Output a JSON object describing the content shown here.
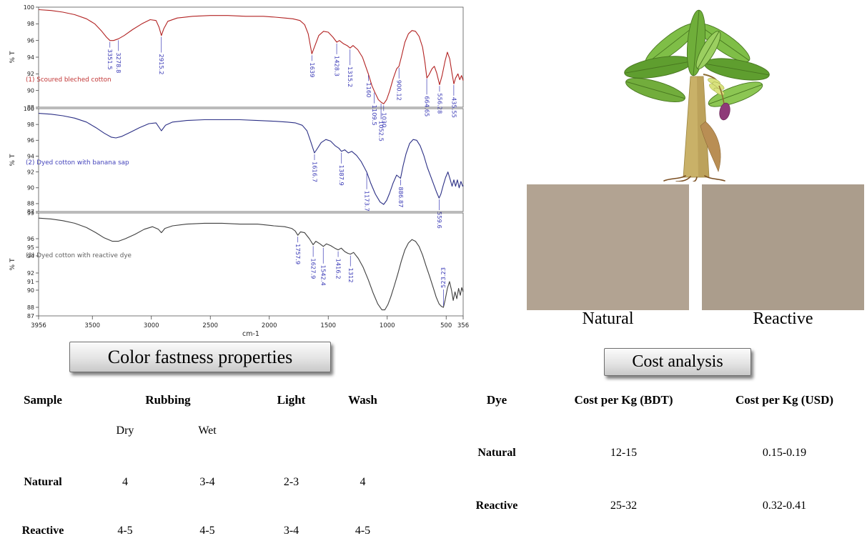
{
  "chart_data": {
    "type": "line",
    "xlabel": "cm-1",
    "ylabel": "% T",
    "x_range": [
      3956,
      356
    ],
    "x_ticks": [
      3956,
      3500,
      3000,
      2500,
      2000,
      1500,
      1000,
      500,
      356
    ],
    "peak_color": "#3a3ab6",
    "panels": [
      {
        "label": "(1) Scoured bleched cotton",
        "line_color": "#b22222",
        "label_color": "#c23535",
        "y_range": [
          88,
          100
        ],
        "y_ticks": [
          100,
          98,
          96,
          94,
          92,
          90,
          88
        ],
        "peaks": [
          3351.5,
          3278.8,
          2915.2,
          1639,
          1428.3,
          1315.2,
          1160,
          1109.5,
          1052.5,
          1030,
          900.12,
          664.65,
          556.28,
          435.55
        ],
        "points": [
          [
            3956,
            99.7
          ],
          [
            3850,
            99.6
          ],
          [
            3750,
            99.4
          ],
          [
            3650,
            99.1
          ],
          [
            3550,
            98.6
          ],
          [
            3480,
            98.0
          ],
          [
            3420,
            97.1
          ],
          [
            3380,
            96.4
          ],
          [
            3351,
            96.0
          ],
          [
            3320,
            96.0
          ],
          [
            3279,
            96.2
          ],
          [
            3230,
            96.6
          ],
          [
            3160,
            97.3
          ],
          [
            3080,
            98.0
          ],
          [
            3010,
            98.5
          ],
          [
            2960,
            98.4
          ],
          [
            2935,
            97.6
          ],
          [
            2915,
            96.6
          ],
          [
            2895,
            97.4
          ],
          [
            2860,
            98.3
          ],
          [
            2780,
            98.7
          ],
          [
            2650,
            98.9
          ],
          [
            2500,
            99.0
          ],
          [
            2350,
            99.0
          ],
          [
            2200,
            98.9
          ],
          [
            2050,
            98.9
          ],
          [
            1950,
            98.8
          ],
          [
            1870,
            98.7
          ],
          [
            1800,
            98.6
          ],
          [
            1740,
            98.4
          ],
          [
            1700,
            97.9
          ],
          [
            1670,
            96.8
          ],
          [
            1639,
            94.4
          ],
          [
            1615,
            95.3
          ],
          [
            1580,
            96.6
          ],
          [
            1540,
            97.1
          ],
          [
            1500,
            97.0
          ],
          [
            1460,
            96.4
          ],
          [
            1428,
            95.8
          ],
          [
            1405,
            96.0
          ],
          [
            1370,
            95.6
          ],
          [
            1340,
            95.4
          ],
          [
            1315,
            95.1
          ],
          [
            1290,
            95.4
          ],
          [
            1250,
            94.9
          ],
          [
            1210,
            94.0
          ],
          [
            1160,
            92.0
          ],
          [
            1130,
            90.6
          ],
          [
            1109,
            89.9
          ],
          [
            1075,
            88.9
          ],
          [
            1052,
            88.6
          ],
          [
            1030,
            88.4
          ],
          [
            1005,
            88.9
          ],
          [
            980,
            89.9
          ],
          [
            950,
            91.4
          ],
          [
            920,
            92.6
          ],
          [
            900,
            92.9
          ],
          [
            880,
            94.0
          ],
          [
            850,
            95.8
          ],
          [
            820,
            96.8
          ],
          [
            790,
            97.2
          ],
          [
            760,
            97.1
          ],
          [
            730,
            96.5
          ],
          [
            700,
            95.2
          ],
          [
            680,
            93.4
          ],
          [
            664,
            91.5
          ],
          [
            645,
            91.9
          ],
          [
            620,
            92.6
          ],
          [
            600,
            92.9
          ],
          [
            580,
            92.1
          ],
          [
            556,
            90.7
          ],
          [
            535,
            91.8
          ],
          [
            510,
            93.5
          ],
          [
            490,
            94.6
          ],
          [
            470,
            93.8
          ],
          [
            450,
            92.0
          ],
          [
            435,
            90.8
          ],
          [
            420,
            91.5
          ],
          [
            400,
            92.0
          ],
          [
            385,
            91.3
          ],
          [
            370,
            91.8
          ],
          [
            356,
            91.2
          ]
        ]
      },
      {
        "label": "(2) Dyed cotton with banana sap",
        "line_color": "#2b2f85",
        "label_color": "#4343bb",
        "y_range": [
          87,
          100
        ],
        "y_ticks": [
          100,
          98,
          96,
          94,
          92,
          90,
          88,
          87
        ],
        "peaks": [
          1616.7,
          1387.9,
          1173.7,
          886.87,
          559.6
        ],
        "points": [
          [
            3956,
            99.4
          ],
          [
            3850,
            99.3
          ],
          [
            3750,
            99.1
          ],
          [
            3650,
            98.8
          ],
          [
            3550,
            98.3
          ],
          [
            3470,
            97.6
          ],
          [
            3400,
            96.9
          ],
          [
            3340,
            96.4
          ],
          [
            3300,
            96.3
          ],
          [
            3250,
            96.5
          ],
          [
            3180,
            97.0
          ],
          [
            3100,
            97.6
          ],
          [
            3020,
            98.1
          ],
          [
            2960,
            98.2
          ],
          [
            2915,
            97.2
          ],
          [
            2880,
            97.9
          ],
          [
            2820,
            98.3
          ],
          [
            2700,
            98.5
          ],
          [
            2550,
            98.6
          ],
          [
            2400,
            98.6
          ],
          [
            2250,
            98.6
          ],
          [
            2100,
            98.5
          ],
          [
            1950,
            98.4
          ],
          [
            1850,
            98.3
          ],
          [
            1780,
            98.2
          ],
          [
            1720,
            97.9
          ],
          [
            1680,
            97.2
          ],
          [
            1650,
            95.9
          ],
          [
            1617,
            94.4
          ],
          [
            1595,
            94.9
          ],
          [
            1560,
            95.7
          ],
          [
            1520,
            96.1
          ],
          [
            1480,
            95.9
          ],
          [
            1440,
            95.3
          ],
          [
            1410,
            95.0
          ],
          [
            1388,
            94.6
          ],
          [
            1360,
            94.8
          ],
          [
            1330,
            94.4
          ],
          [
            1300,
            94.6
          ],
          [
            1260,
            94.1
          ],
          [
            1220,
            93.3
          ],
          [
            1174,
            92.0
          ],
          [
            1140,
            90.6
          ],
          [
            1100,
            89.2
          ],
          [
            1060,
            88.2
          ],
          [
            1030,
            87.9
          ],
          [
            1005,
            88.4
          ],
          [
            980,
            89.3
          ],
          [
            950,
            90.6
          ],
          [
            920,
            91.6
          ],
          [
            887,
            91.2
          ],
          [
            865,
            92.8
          ],
          [
            840,
            94.3
          ],
          [
            810,
            95.6
          ],
          [
            780,
            96.1
          ],
          [
            750,
            96.0
          ],
          [
            720,
            95.3
          ],
          [
            690,
            94.1
          ],
          [
            660,
            92.6
          ],
          [
            630,
            91.4
          ],
          [
            600,
            90.2
          ],
          [
            580,
            89.4
          ],
          [
            560,
            88.7
          ],
          [
            545,
            89.2
          ],
          [
            525,
            90.3
          ],
          [
            505,
            91.3
          ],
          [
            485,
            92.0
          ],
          [
            465,
            91.0
          ],
          [
            450,
            90.2
          ],
          [
            435,
            91.0
          ],
          [
            420,
            90.2
          ],
          [
            405,
            91.0
          ],
          [
            390,
            90.0
          ],
          [
            375,
            90.8
          ],
          [
            360,
            90.2
          ],
          [
            356,
            90.3
          ]
        ]
      },
      {
        "label": "(3) Dyed cotton with reactive dye",
        "line_color": "#3f3f3f",
        "label_color": "#606060",
        "y_range": [
          87,
          99
        ],
        "y_ticks": [
          99,
          96,
          95,
          94,
          92,
          91,
          90,
          88,
          87
        ],
        "peaks": [
          1757.9,
          1627.9,
          1542.4,
          1416.2,
          1312,
          523.23
        ],
        "points": [
          [
            3956,
            98.4
          ],
          [
            3850,
            98.3
          ],
          [
            3750,
            98.1
          ],
          [
            3650,
            97.8
          ],
          [
            3550,
            97.3
          ],
          [
            3470,
            96.7
          ],
          [
            3400,
            96.1
          ],
          [
            3330,
            95.7
          ],
          [
            3280,
            95.7
          ],
          [
            3220,
            96.0
          ],
          [
            3140,
            96.5
          ],
          [
            3060,
            97.1
          ],
          [
            2990,
            97.4
          ],
          [
            2940,
            97.1
          ],
          [
            2915,
            96.7
          ],
          [
            2885,
            97.2
          ],
          [
            2820,
            97.5
          ],
          [
            2700,
            97.7
          ],
          [
            2550,
            97.8
          ],
          [
            2400,
            97.8
          ],
          [
            2250,
            97.7
          ],
          [
            2100,
            97.7
          ],
          [
            1960,
            97.5
          ],
          [
            1870,
            97.4
          ],
          [
            1810,
            97.2
          ],
          [
            1780,
            96.9
          ],
          [
            1758,
            96.4
          ],
          [
            1735,
            96.8
          ],
          [
            1700,
            96.7
          ],
          [
            1660,
            96.0
          ],
          [
            1628,
            95.3
          ],
          [
            1605,
            95.7
          ],
          [
            1570,
            95.4
          ],
          [
            1542,
            95.1
          ],
          [
            1515,
            95.4
          ],
          [
            1480,
            95.2
          ],
          [
            1445,
            94.9
          ],
          [
            1416,
            94.7
          ],
          [
            1390,
            94.9
          ],
          [
            1360,
            94.5
          ],
          [
            1335,
            94.3
          ],
          [
            1312,
            94.2
          ],
          [
            1285,
            94.4
          ],
          [
            1245,
            93.7
          ],
          [
            1205,
            92.7
          ],
          [
            1160,
            91.2
          ],
          [
            1120,
            89.7
          ],
          [
            1080,
            88.4
          ],
          [
            1045,
            87.7
          ],
          [
            1020,
            87.7
          ],
          [
            995,
            88.3
          ],
          [
            970,
            89.2
          ],
          [
            940,
            90.5
          ],
          [
            910,
            91.9
          ],
          [
            880,
            93.4
          ],
          [
            850,
            94.7
          ],
          [
            820,
            95.5
          ],
          [
            790,
            95.9
          ],
          [
            760,
            95.7
          ],
          [
            730,
            95.1
          ],
          [
            700,
            94.1
          ],
          [
            670,
            92.8
          ],
          [
            640,
            91.6
          ],
          [
            610,
            90.3
          ],
          [
            585,
            89.2
          ],
          [
            560,
            88.4
          ],
          [
            540,
            88.1
          ],
          [
            523,
            88.0
          ],
          [
            508,
            88.9
          ],
          [
            490,
            90.2
          ],
          [
            472,
            91.0
          ],
          [
            455,
            90.0
          ],
          [
            440,
            88.8
          ],
          [
            425,
            89.8
          ],
          [
            410,
            89.0
          ],
          [
            395,
            90.2
          ],
          [
            380,
            89.4
          ],
          [
            368,
            90.3
          ],
          [
            356,
            89.8
          ]
        ]
      }
    ]
  },
  "plant_icon": "banana-plant-illustration",
  "swatches": [
    {
      "label": "Natural",
      "color": "#b2a392"
    },
    {
      "label": "Reactive",
      "color": "#ab9d8c"
    }
  ],
  "fastness_section": {
    "title": "Color fastness properties",
    "table": {
      "col_sample": "Sample",
      "col_rubbing": "Rubbing",
      "col_dry": "Dry",
      "col_wet": "Wet",
      "col_light": "Light",
      "col_wash": "Wash",
      "rows": [
        {
          "sample": "Natural",
          "dry": "4",
          "wet": "3-4",
          "light": "2-3",
          "wash": "4"
        },
        {
          "sample": "Reactive",
          "dry": "4-5",
          "wet": "4-5",
          "light": "3-4",
          "wash": "4-5"
        }
      ]
    }
  },
  "cost_section": {
    "title": "Cost analysis",
    "table": {
      "col_dye": "Dye",
      "col_bdt": "Cost per Kg (BDT)",
      "col_usd": "Cost per Kg (USD)",
      "rows": [
        {
          "dye": "Natural",
          "bdt": "12-15",
          "usd": "0.15-0.19"
        },
        {
          "dye": "Reactive",
          "bdt": "25-32",
          "usd": "0.32-0.41"
        }
      ]
    }
  }
}
